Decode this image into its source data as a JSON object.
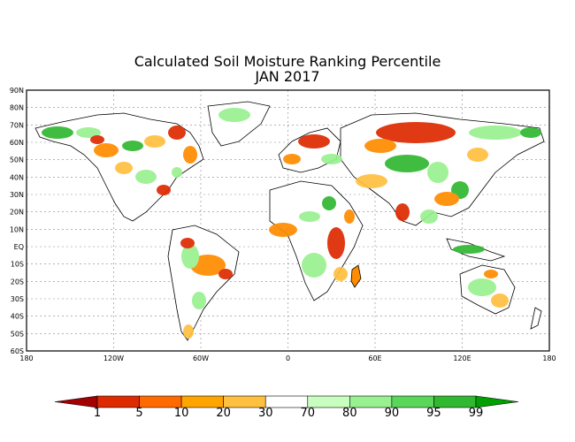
{
  "title": "Calculated Soil Moisture Ranking Percentile",
  "subtitle": "JAN 2017",
  "latitude_labels": [
    "90N",
    "80N",
    "70N",
    "60N",
    "50N",
    "40N",
    "30N",
    "20N",
    "10N",
    "EQ",
    "10S",
    "20S",
    "30S",
    "40S",
    "50S",
    "60S"
  ],
  "longitude_labels": [
    "180",
    "120W",
    "60W",
    "0",
    "60E",
    "120E",
    "180"
  ],
  "colorbar": {
    "labels": [
      "1",
      "5",
      "10",
      "20",
      "30",
      "70",
      "80",
      "90",
      "95",
      "99"
    ],
    "colors": [
      "#a50000",
      "#dd2a00",
      "#ff6a00",
      "#ffa500",
      "#ffc040",
      "#ffffff",
      "#c8ffc0",
      "#98f090",
      "#5ad65a",
      "#30b830",
      "#00a000"
    ]
  },
  "legend_colors": {
    "very_dry": "#dd2a00",
    "dry": "#ff8c00",
    "moderate_dry": "#ffc040",
    "normal": "#ffffff",
    "moderate_wet": "#98f090",
    "wet": "#30b830"
  }
}
